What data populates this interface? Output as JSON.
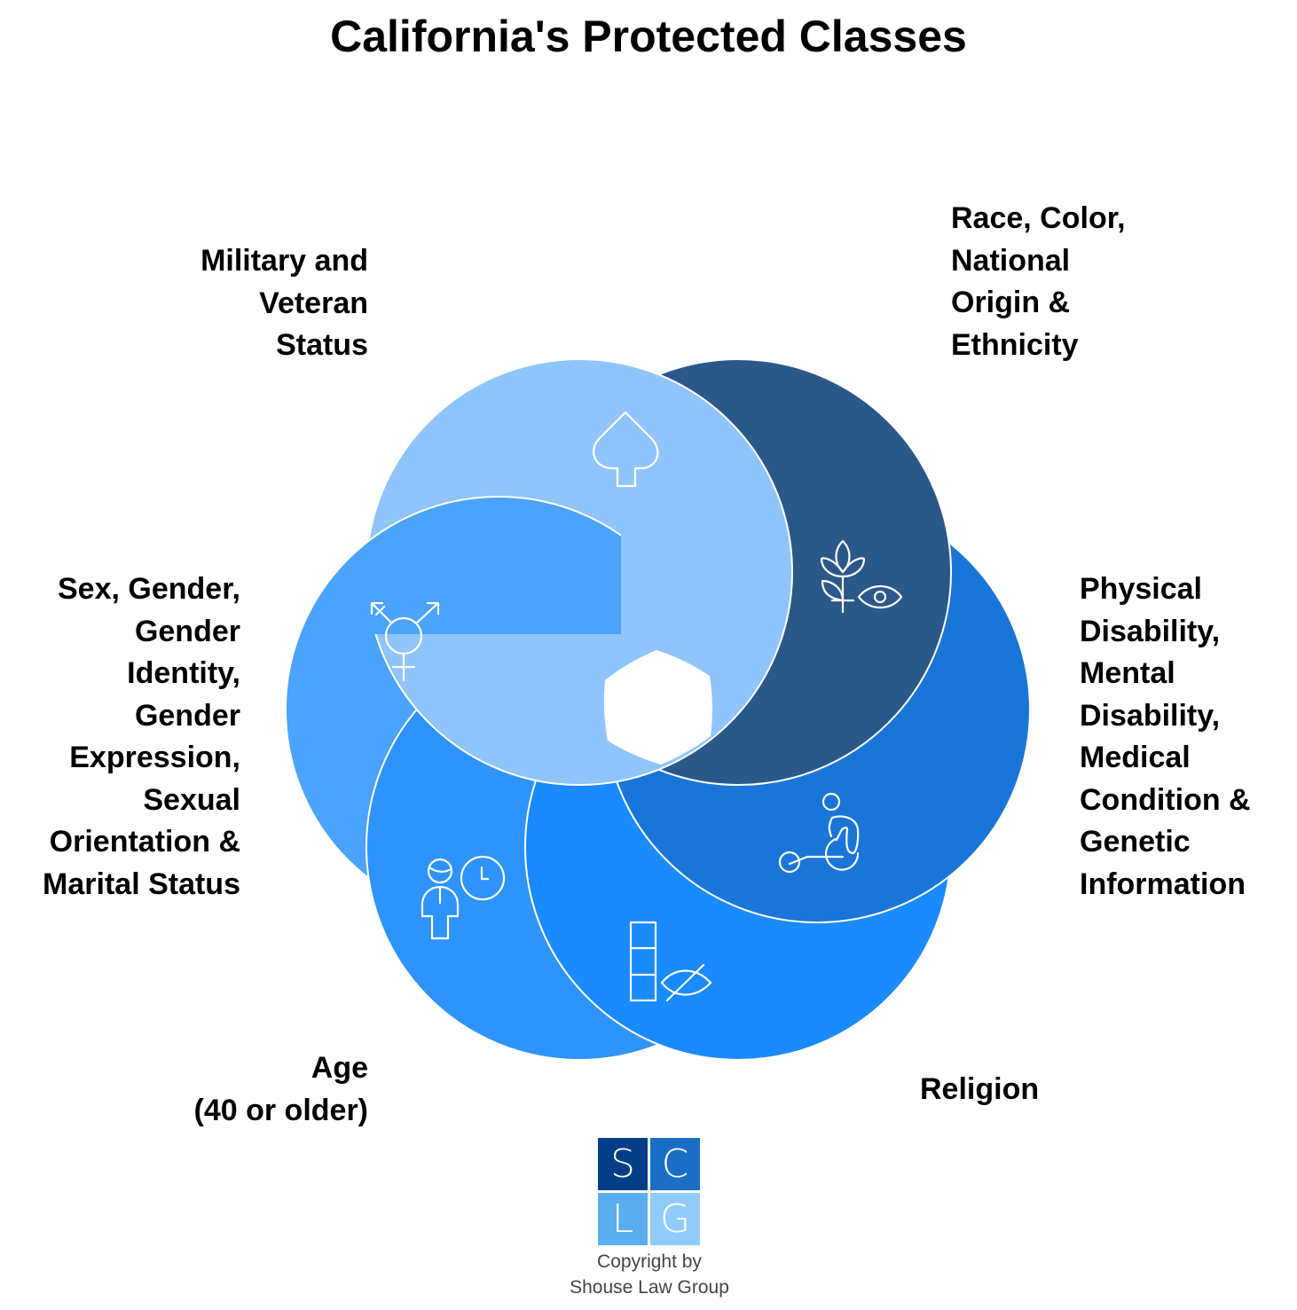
{
  "title": "California's Protected Classes",
  "classes": [
    {
      "id": "military",
      "lines": [
        "Military and",
        "Veteran",
        "Status"
      ],
      "color": "#90C4FC",
      "icon": "spade-shield-icon"
    },
    {
      "id": "race",
      "lines": [
        "Race, Color,",
        "National",
        "Origin &",
        "Ethnicity"
      ],
      "color": "#2A5889",
      "icon": "plant-eye-icon"
    },
    {
      "id": "disability",
      "lines": [
        "Physical",
        "Disability,",
        "Mental",
        "Disability,",
        "Medical",
        "Condition &",
        "Genetic",
        "Information"
      ],
      "color": "#1976D8",
      "icon": "wheelchair-icon"
    },
    {
      "id": "religion",
      "lines": [
        "Religion"
      ],
      "color": "#1A8AFF",
      "icon": "religion-eye-slash-icon"
    },
    {
      "id": "age",
      "lines": [
        "Age",
        "(40 or older)"
      ],
      "color": "#2E94FB",
      "icon": "person-clock-icon"
    },
    {
      "id": "sex",
      "lines": [
        "Sex, Gender,",
        "Gender",
        "Identity,",
        "Gender",
        "Expression,",
        "Sexual",
        "Orientation &",
        "Marital Status"
      ],
      "color": "#4BA3FB",
      "icon": "transgender-symbol-icon"
    }
  ],
  "logo": {
    "letters": [
      "S",
      "C",
      "L",
      "G"
    ],
    "colors": [
      "#003F87",
      "#1A6FC4",
      "#59AEF0",
      "#8FCCFB"
    ]
  },
  "copyright": [
    "Copyright by",
    "Shouse Law Group"
  ]
}
